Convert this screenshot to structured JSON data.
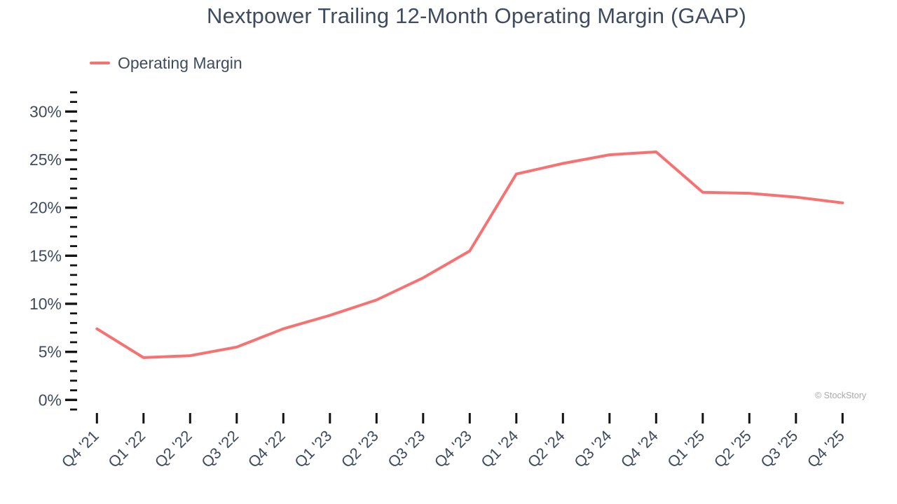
{
  "title": "Nextpower Trailing 12-Month Operating Margin (GAAP)",
  "legend": {
    "label": "Operating Margin"
  },
  "watermark": "© StockStory",
  "colors": {
    "line": "#f87171",
    "text": "#3f4b5e",
    "tick": "#141414",
    "watermark": "#a8a8a8"
  },
  "chart_data": {
    "type": "line",
    "title": "Nextpower Trailing 12-Month Operating Margin (GAAP)",
    "xlabel": "",
    "ylabel": "",
    "grid": false,
    "legend_position": "top-left",
    "categories": [
      "Q4 '21",
      "Q1 '22",
      "Q2 '22",
      "Q3 '22",
      "Q4 '22",
      "Q1 '23",
      "Q2 '23",
      "Q3 '23",
      "Q4 '23",
      "Q1 '24",
      "Q2 '24",
      "Q3 '24",
      "Q4 '24",
      "Q1 '25",
      "Q2 '25",
      "Q3 '25",
      "Q4 '25"
    ],
    "series": [
      {
        "name": "Operating Margin",
        "unit": "%",
        "values": [
          7.4,
          4.4,
          4.6,
          5.5,
          7.4,
          8.8,
          10.4,
          12.7,
          15.5,
          23.5,
          24.6,
          25.5,
          25.8,
          21.6,
          21.5,
          21.1,
          20.5
        ]
      }
    ],
    "y_axis": {
      "min": -1,
      "max": 32,
      "minor_step": 1,
      "tick_values": [
        0,
        5,
        10,
        15,
        20,
        25,
        30
      ],
      "tick_labels": [
        "0%",
        "5%",
        "10%",
        "15%",
        "20%",
        "25%",
        "30%"
      ]
    }
  }
}
